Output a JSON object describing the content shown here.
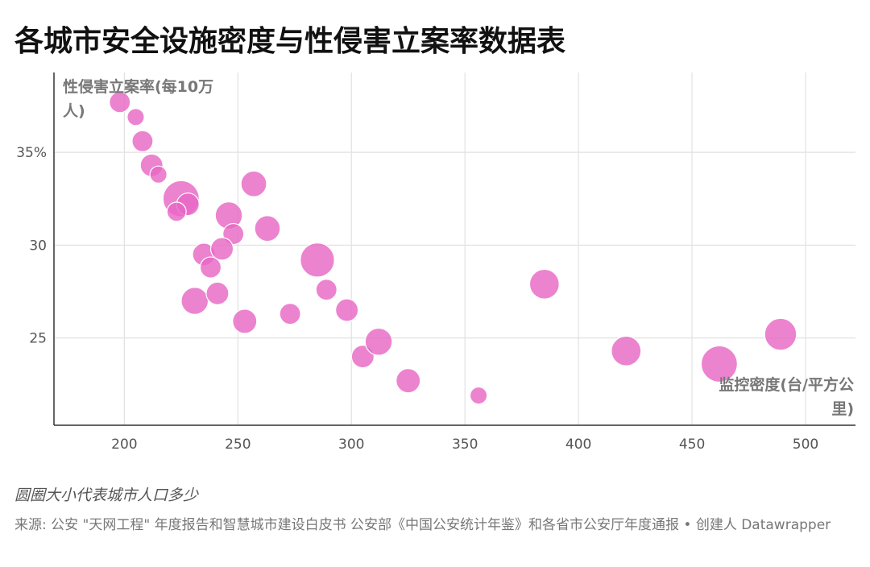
{
  "header": {
    "title": "各城市安全设施密度与性侵害立案率数据表"
  },
  "chart_data": {
    "type": "scatter",
    "title": "各城市安全设施密度与性侵害立案率数据表",
    "xlabel": "监控密度(台/平方公里)",
    "ylabel": "性侵害立案率(每10万人)",
    "xlim": [
      169,
      522
    ],
    "ylim": [
      20.3,
      39.3
    ],
    "x_ticks": [
      200,
      250,
      300,
      350,
      400,
      450,
      500
    ],
    "x_tick_labels": [
      "200",
      "250",
      "300",
      "350",
      "400",
      "450",
      "500"
    ],
    "y_ticks": [
      25,
      30,
      35
    ],
    "y_tick_labels": [
      "25",
      "30",
      "35%"
    ],
    "size_legend": "圆圈大小代表城市人口多少",
    "color": "#e868c4",
    "points": [
      {
        "x": 198,
        "y": 37.7,
        "size": 3
      },
      {
        "x": 205,
        "y": 36.9,
        "size": 2
      },
      {
        "x": 208,
        "y": 35.6,
        "size": 3
      },
      {
        "x": 212,
        "y": 34.3,
        "size": 3.5
      },
      {
        "x": 215,
        "y": 33.8,
        "size": 2
      },
      {
        "x": 225,
        "y": 32.5,
        "size": 9
      },
      {
        "x": 228,
        "y": 32.2,
        "size": 3.5
      },
      {
        "x": 223,
        "y": 31.8,
        "size": 2.5
      },
      {
        "x": 246,
        "y": 31.6,
        "size": 5
      },
      {
        "x": 248,
        "y": 30.6,
        "size": 3
      },
      {
        "x": 257,
        "y": 33.3,
        "size": 4.5
      },
      {
        "x": 263,
        "y": 30.9,
        "size": 4.5
      },
      {
        "x": 235,
        "y": 29.5,
        "size": 3.5
      },
      {
        "x": 243,
        "y": 29.8,
        "size": 3.5
      },
      {
        "x": 238,
        "y": 28.8,
        "size": 3
      },
      {
        "x": 231,
        "y": 27.0,
        "size": 5
      },
      {
        "x": 241,
        "y": 27.4,
        "size": 3.5
      },
      {
        "x": 253,
        "y": 25.9,
        "size": 4
      },
      {
        "x": 273,
        "y": 26.3,
        "size": 3
      },
      {
        "x": 285,
        "y": 29.2,
        "size": 8
      },
      {
        "x": 289,
        "y": 27.6,
        "size": 3
      },
      {
        "x": 298,
        "y": 26.5,
        "size": 3.5
      },
      {
        "x": 305,
        "y": 24.0,
        "size": 3.5
      },
      {
        "x": 312,
        "y": 24.8,
        "size": 5
      },
      {
        "x": 325,
        "y": 22.7,
        "size": 4
      },
      {
        "x": 356,
        "y": 21.9,
        "size": 2
      },
      {
        "x": 385,
        "y": 27.9,
        "size": 6
      },
      {
        "x": 421,
        "y": 24.3,
        "size": 6
      },
      {
        "x": 462,
        "y": 23.6,
        "size": 9
      },
      {
        "x": 489,
        "y": 25.2,
        "size": 7
      }
    ]
  },
  "footer": {
    "note": "圆圈大小代表城市人口多少",
    "source": "来源: 公安 \"天网工程\" 年度报告和智慧城市建设白皮书 公安部《中国公安统计年鉴》和各省市公安厅年度通报 • 创建人 Datawrapper"
  }
}
